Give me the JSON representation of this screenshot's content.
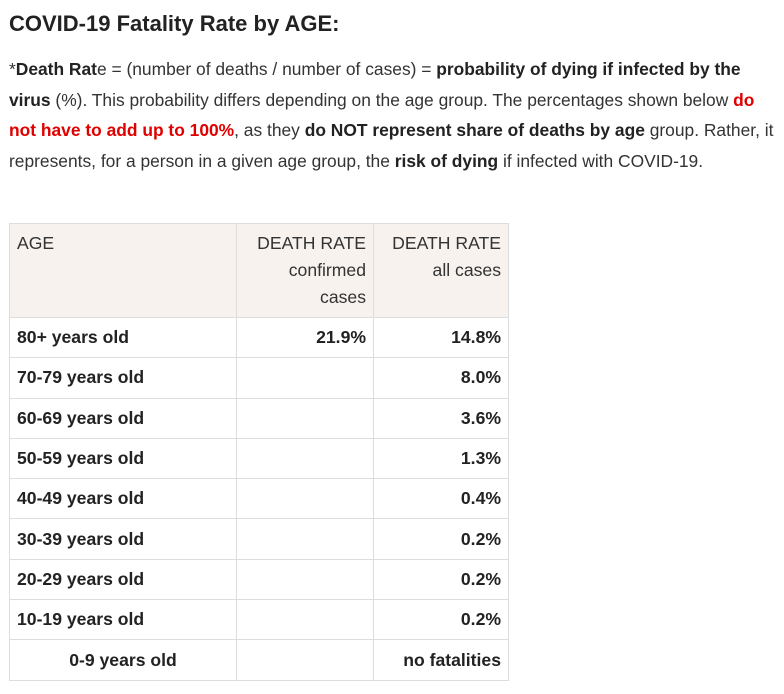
{
  "title": "COVID-19 Fatality Rate by AGE:",
  "intro": {
    "s1_star": "*",
    "s1_bold": "Death Rat",
    "s1_e": "e",
    "s2": " = (number of deaths / number of cases) = ",
    "s3_bold": "probability of dying if infected by the virus",
    "s4": " (%). This probability differs depending on the age group. The percentages shown below ",
    "s5_red": "do not have to add up to 100%",
    "s6": ", as they ",
    "s7_bold": "do NOT represent share of deaths by age",
    "s8": " group. Rather, it represents, for a person in a given age group, the ",
    "s9_bold": "risk of dying",
    "s10": " if infected with COVID-19."
  },
  "table": {
    "headers": {
      "age": "AGE",
      "confirmed_line1": "DEATH RATE",
      "confirmed_line2": "confirmed",
      "confirmed_line3": "cases",
      "all_line1": "DEATH RATE",
      "all_line2": "all cases"
    },
    "rows": [
      {
        "age": "80+ years old",
        "confirmed": "21.9%",
        "all": "14.8%"
      },
      {
        "age": "70-79 years old",
        "confirmed": "",
        "all": "8.0%"
      },
      {
        "age": "60-69 years old",
        "confirmed": "",
        "all": "3.6%"
      },
      {
        "age": "50-59 years old",
        "confirmed": "",
        "all": "1.3%"
      },
      {
        "age": "40-49 years old",
        "confirmed": "",
        "all": "0.4%"
      },
      {
        "age": "30-39 years old",
        "confirmed": "",
        "all": "0.2%"
      },
      {
        "age": "20-29 years old",
        "confirmed": "",
        "all": "0.2%"
      },
      {
        "age": "10-19 years old",
        "confirmed": "",
        "all": "0.2%"
      },
      {
        "age": "0-9 years old",
        "confirmed": "",
        "all": "no fatalities"
      }
    ]
  }
}
